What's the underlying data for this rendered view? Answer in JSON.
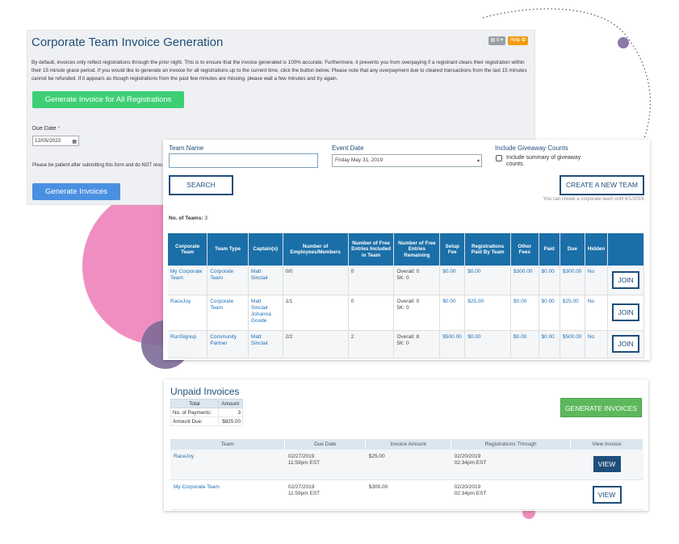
{
  "colors": {
    "brand_navy": "#1f4e79",
    "header_blue": "#1b6fa8",
    "green": "#3ecf75",
    "blue": "#4a90e2",
    "gen_green": "#5db85c",
    "pink": "#ef8fc1",
    "purple": "#7d6a98"
  },
  "invoice_generation": {
    "title": "Corporate Team Invoice Generation",
    "tool_count": "0",
    "help_label": "Help",
    "description": "By default, invoices only reflect registrations through the prior night. This is to ensure that the invoice generated is 100% accurate. Furthermore, it prevents you from overpaying if a registrant clears their registration within their 15 minute grace period. If you would like to generate an invoice for all registrations up to the current time, click the button below. Please note that any overpayment due to cleared transactions from the last 15 minutes cannot be refunded. If it appears as though registrations from the past few minutes are missing, please wait a few minutes and try again.",
    "generate_all_label": "Generate Invoice for All Registrations",
    "due_date_label": "Due Date",
    "required_mark": "*",
    "due_date_value": "12/05/2022",
    "patience_text": "Please be patient after submitting this form and do NOT resu",
    "generate_label": "Generate Invoices"
  },
  "teams": {
    "team_name_label": "Team Name",
    "team_name_value": "",
    "event_date_label": "Event Date",
    "event_date_value": "Friday May 31, 2019",
    "giveaway_label": "Include Giveaway Counts",
    "giveaway_checkbox_text": "Include summary of giveaway counts.",
    "search_label": "SEARCH",
    "create_label": "CREATE A NEW TEAM",
    "create_note": "You can create a corporate team until 6/1/2019.",
    "count_label": "No. of Teams:",
    "count_value": "3",
    "columns": [
      "Corporate Team",
      "Team Type",
      "Captain(s)",
      "Number of Employees/Members",
      "Number of Free Entries Included in Team",
      "Number of Free Entries Remaining",
      "Setup Fee",
      "Registrations Paid By Team",
      "Other Fees",
      "Paid",
      "Due",
      "Hidden",
      ""
    ],
    "rows": [
      {
        "team": "My Corporate Team",
        "type": "Corporate Team",
        "captains": "Matt Sinclair",
        "members": "0/0",
        "free_included": "0",
        "free_remaining_overall": "Overall: 0",
        "free_remaining_5k": "5K: 0",
        "setup_fee": "$0.00",
        "paid_by_team": "$0.00",
        "other_fees": "$300.00",
        "paid": "$0.00",
        "due": "$300.00",
        "hidden": "No",
        "action": "JOIN"
      },
      {
        "team": "RaceJoy",
        "type": "Corporate Team",
        "captains": "Matt Sinclair Johanna Goode",
        "members": "1/1",
        "free_included": "0",
        "free_remaining_overall": "Overall: 0",
        "free_remaining_5k": "5K: 0",
        "setup_fee": "$0.00",
        "paid_by_team": "$25.00",
        "other_fees": "$0.00",
        "paid": "$0.00",
        "due": "$25.00",
        "hidden": "No",
        "action": "JOIN"
      },
      {
        "team": "RunSignup",
        "type": "Community Partner",
        "captains": "Matt Sinclair",
        "members": "2/2",
        "free_included": "2",
        "free_remaining_overall": "Overall: 8",
        "free_remaining_5k": "5K: 0",
        "setup_fee": "$500.00",
        "paid_by_team": "$0.00",
        "other_fees": "$0.00",
        "paid": "$0.00",
        "due": "$500.00",
        "hidden": "No",
        "action": "JOIN"
      }
    ]
  },
  "unpaid": {
    "title": "Unpaid Invoices",
    "summary_headers": [
      "Total",
      "Amount"
    ],
    "payments_label": "No. of Payments:",
    "payments_value": "3",
    "amount_due_label": "Amount Due:",
    "amount_due_value": "$825.00",
    "generate_label": "GENERATE INVOICES",
    "columns": [
      "Team",
      "Due Date",
      "Invoice Amount",
      "Registrations Through",
      "View Invoice"
    ],
    "rows": [
      {
        "team": "RaceJoy",
        "due_date": "02/27/2019",
        "due_time": "11:59pm EST",
        "amount": "$25.00",
        "through_date": "02/20/2019",
        "through_time": "02:34pm EST",
        "action": "VIEW"
      },
      {
        "team": "My Corporate Team",
        "due_date": "02/27/2019",
        "due_time": "11:59pm EST",
        "amount": "$300.00",
        "through_date": "02/20/2019",
        "through_time": "02:34pm EST",
        "action": "VIEW"
      }
    ]
  }
}
